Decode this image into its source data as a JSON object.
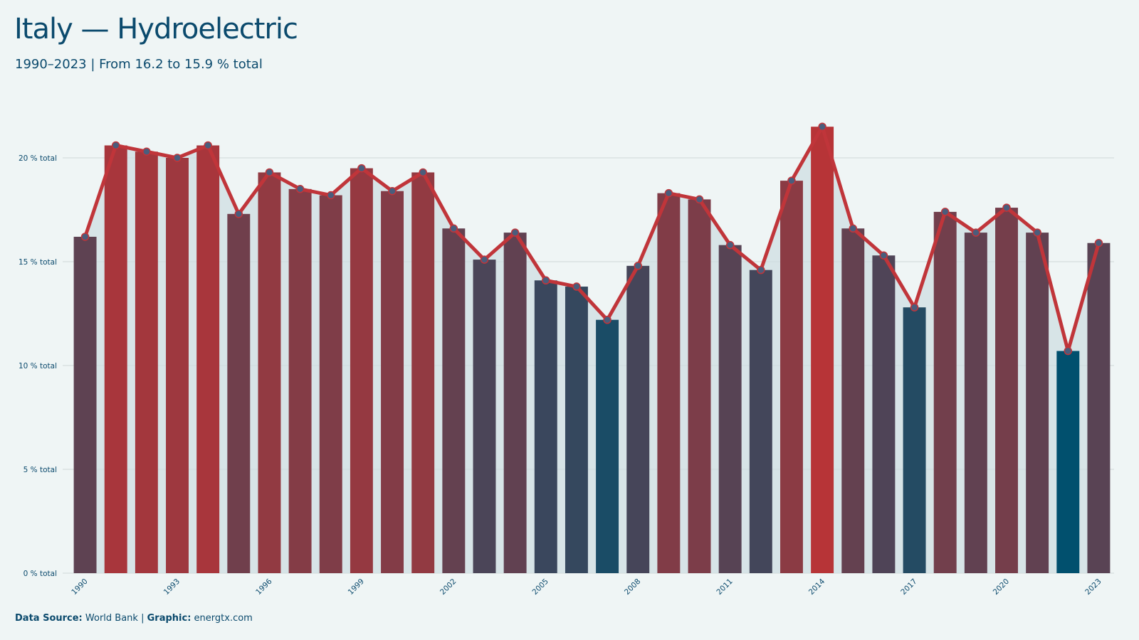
{
  "title": "Italy — Hydroelectric",
  "subtitle": "1990–2023 | From 16.2 to 15.9 % total",
  "caption": {
    "source_label": "Data Source:",
    "source_value": "World Bank",
    "separator": "|",
    "graphic_label": "Graphic:",
    "graphic_value": "energtx.com"
  },
  "colors": {
    "background": "#eff5f5",
    "line": "#c0353a",
    "high_bar": "#b73437",
    "low_bar": "#01506e",
    "point_fill": "#4a5d7c",
    "area_fill": "#cfdde2",
    "grid": "#cfd8d8",
    "text": "#0b4a6d"
  },
  "chart_data": {
    "type": "bar",
    "overlay": "line-with-points",
    "categories": [
      "1990",
      "1991",
      "1992",
      "1993",
      "1994",
      "1995",
      "1996",
      "1997",
      "1998",
      "1999",
      "2000",
      "2001",
      "2002",
      "2003",
      "2004",
      "2005",
      "2006",
      "2007",
      "2008",
      "2009",
      "2010",
      "2011",
      "2012",
      "2013",
      "2014",
      "2015",
      "2016",
      "2017",
      "2018",
      "2019",
      "2020",
      "2021",
      "2022",
      "2023"
    ],
    "values": [
      16.2,
      20.6,
      20.3,
      20.0,
      20.6,
      17.3,
      19.3,
      18.5,
      18.2,
      19.5,
      18.4,
      19.3,
      16.6,
      15.1,
      16.4,
      14.1,
      13.8,
      12.2,
      14.8,
      18.3,
      18.0,
      15.8,
      14.6,
      18.9,
      21.5,
      16.6,
      15.3,
      12.8,
      17.4,
      16.4,
      17.6,
      16.4,
      10.7,
      15.9
    ],
    "x_tick_labels": [
      "1990",
      "1993",
      "1996",
      "1999",
      "2002",
      "2005",
      "2008",
      "2011",
      "2014",
      "2017",
      "2020",
      "2023"
    ],
    "y_ticks": [
      0,
      5,
      10,
      15,
      20
    ],
    "y_tick_labels": [
      "0 % total",
      "5 % total",
      "10 % total",
      "15 % total",
      "20 % total"
    ],
    "ylim": [
      0,
      23
    ],
    "grid": "horizontal",
    "legend": "none"
  }
}
